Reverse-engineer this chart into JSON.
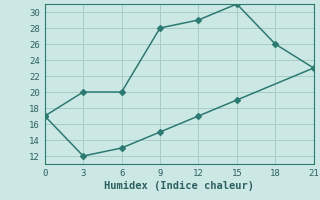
{
  "xlabel": "Humidex (Indice chaleur)",
  "x_upper": [
    0,
    3,
    6,
    9,
    12,
    15,
    18,
    21
  ],
  "y_upper": [
    17,
    20,
    20,
    28,
    29,
    31,
    26,
    23
  ],
  "x_lower": [
    0,
    3,
    6,
    9,
    12,
    15,
    21
  ],
  "y_lower": [
    17,
    12,
    13,
    15,
    17,
    19,
    23
  ],
  "xlim": [
    0,
    21
  ],
  "ylim": [
    11,
    31
  ],
  "xticks": [
    0,
    3,
    6,
    9,
    12,
    15,
    18,
    21
  ],
  "yticks": [
    12,
    14,
    16,
    18,
    20,
    22,
    24,
    26,
    28,
    30
  ],
  "line_color": "#2d7a72",
  "bg_color": "#cce8e4",
  "grid_color": "#a8ccc8",
  "font_color": "#2d6060",
  "marker": "D",
  "markersize": 3,
  "linewidth": 1.1,
  "xlabel_fontsize": 7.5,
  "tick_fontsize": 6.5
}
